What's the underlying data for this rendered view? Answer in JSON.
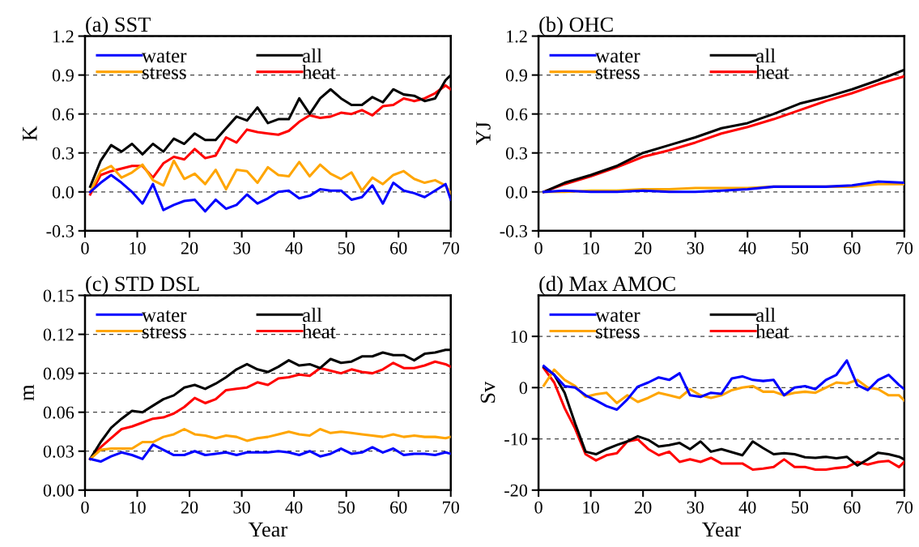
{
  "chart_data": [
    {
      "type": "line",
      "title": "(a) SST",
      "ylabel": "K",
      "xlim": [
        0,
        70
      ],
      "xticks": [
        0,
        10,
        20,
        30,
        40,
        50,
        60,
        70
      ],
      "ylim": [
        -0.3,
        1.2
      ],
      "yticks": [
        {
          "value": -0.3,
          "label": "-0.3"
        },
        {
          "value": 0,
          "label": "0.0"
        },
        {
          "value": 0.3,
          "label": "0.3"
        },
        {
          "value": 0.6,
          "label": "0.6"
        },
        {
          "value": 0.9,
          "label": "0.9"
        },
        {
          "value": 1.2,
          "label": "1.2"
        }
      ],
      "grid": "y",
      "legend": "top left",
      "line_style": "solid",
      "marker": "none",
      "x": [
        1,
        3,
        5,
        7,
        9,
        11,
        13,
        15,
        17,
        19,
        21,
        23,
        25,
        27,
        29,
        31,
        33,
        35,
        37,
        39,
        41,
        43,
        45,
        47,
        49,
        51,
        53,
        55,
        57,
        59,
        61,
        63,
        65,
        67,
        69,
        70
      ],
      "series": [
        {
          "name": "water",
          "color": "#0000ff",
          "values": [
            0.0,
            0.07,
            0.13,
            0.07,
            0.0,
            -0.09,
            0.06,
            -0.14,
            -0.1,
            -0.07,
            -0.06,
            -0.15,
            -0.06,
            -0.13,
            -0.1,
            -0.02,
            -0.09,
            -0.05,
            0.0,
            0.01,
            -0.05,
            -0.03,
            0.02,
            0.01,
            0.01,
            -0.06,
            -0.04,
            0.05,
            -0.09,
            0.07,
            0.01,
            -0.01,
            -0.04,
            0.01,
            0.06,
            -0.06
          ]
        },
        {
          "name": "stress",
          "color": "#ffa500",
          "values": [
            0.0,
            0.16,
            0.2,
            0.11,
            0.15,
            0.21,
            0.09,
            0.05,
            0.24,
            0.1,
            0.14,
            0.06,
            0.17,
            0.02,
            0.17,
            0.16,
            0.07,
            0.19,
            0.13,
            0.12,
            0.23,
            0.12,
            0.21,
            0.14,
            0.1,
            0.15,
            0.01,
            0.11,
            0.06,
            0.13,
            0.16,
            0.1,
            0.07,
            0.09,
            0.05,
            -0.01
          ]
        },
        {
          "name": "all",
          "color": "#000000",
          "values": [
            0.04,
            0.24,
            0.36,
            0.31,
            0.37,
            0.29,
            0.37,
            0.31,
            0.41,
            0.37,
            0.45,
            0.4,
            0.4,
            0.49,
            0.58,
            0.55,
            0.65,
            0.53,
            0.56,
            0.56,
            0.72,
            0.6,
            0.72,
            0.79,
            0.72,
            0.67,
            0.67,
            0.73,
            0.69,
            0.79,
            0.75,
            0.74,
            0.7,
            0.72,
            0.86,
            0.9
          ]
        },
        {
          "name": "heat",
          "color": "#ff0000",
          "values": [
            -0.02,
            0.13,
            0.16,
            0.18,
            0.2,
            0.2,
            0.11,
            0.22,
            0.27,
            0.25,
            0.33,
            0.26,
            0.28,
            0.42,
            0.38,
            0.48,
            0.46,
            0.45,
            0.44,
            0.47,
            0.54,
            0.59,
            0.57,
            0.58,
            0.61,
            0.6,
            0.63,
            0.59,
            0.66,
            0.67,
            0.72,
            0.7,
            0.72,
            0.76,
            0.82,
            0.79
          ]
        }
      ]
    },
    {
      "type": "line",
      "title": "(b) OHC",
      "ylabel": "YJ",
      "xlim": [
        0,
        70
      ],
      "xticks": [
        0,
        10,
        20,
        30,
        40,
        50,
        60,
        70
      ],
      "ylim": [
        -0.3,
        1.2
      ],
      "yticks": [
        {
          "value": -0.3,
          "label": "-0.3"
        },
        {
          "value": 0,
          "label": "0.0"
        },
        {
          "value": 0.3,
          "label": "0.3"
        },
        {
          "value": 0.6,
          "label": "0.6"
        },
        {
          "value": 0.9,
          "label": "0.9"
        },
        {
          "value": 1.2,
          "label": "1.2"
        }
      ],
      "grid": "y",
      "legend": "top left",
      "line_style": "solid",
      "marker": "none",
      "x": [
        1,
        5,
        10,
        15,
        20,
        25,
        30,
        35,
        40,
        45,
        50,
        55,
        60,
        65,
        70
      ],
      "series": [
        {
          "name": "water",
          "color": "#0000ff",
          "values": [
            0.0,
            0.01,
            0.0,
            0.0,
            0.01,
            0.0,
            0.0,
            0.01,
            0.02,
            0.04,
            0.04,
            0.04,
            0.05,
            0.08,
            0.07
          ]
        },
        {
          "name": "stress",
          "color": "#ffa500",
          "values": [
            0.0,
            0.0,
            0.01,
            0.01,
            0.02,
            0.02,
            0.03,
            0.03,
            0.03,
            0.04,
            0.04,
            0.04,
            0.04,
            0.06,
            0.06
          ]
        },
        {
          "name": "all",
          "color": "#000000",
          "values": [
            0.0,
            0.07,
            0.13,
            0.2,
            0.3,
            0.36,
            0.42,
            0.49,
            0.53,
            0.6,
            0.68,
            0.73,
            0.79,
            0.86,
            0.94
          ]
        },
        {
          "name": "heat",
          "color": "#ff0000",
          "values": [
            0.0,
            0.06,
            0.12,
            0.19,
            0.27,
            0.32,
            0.38,
            0.45,
            0.5,
            0.56,
            0.63,
            0.7,
            0.76,
            0.83,
            0.89
          ]
        }
      ]
    },
    {
      "type": "line",
      "title": "(c) STD DSL",
      "xlabel": "Year",
      "ylabel": "m",
      "xlim": [
        0,
        70
      ],
      "xticks": [
        0,
        10,
        20,
        30,
        40,
        50,
        60,
        70
      ],
      "ylim": [
        0,
        0.15
      ],
      "yticks": [
        {
          "value": 0,
          "label": "0.00"
        },
        {
          "value": 0.03,
          "label": "0.03"
        },
        {
          "value": 0.06,
          "label": "0.06"
        },
        {
          "value": 0.09,
          "label": "0.09"
        },
        {
          "value": 0.12,
          "label": "0.12"
        },
        {
          "value": 0.15,
          "label": "0.15"
        }
      ],
      "grid": "y",
      "legend": "top left",
      "line_style": "solid",
      "marker": "none",
      "x": [
        1,
        3,
        5,
        7,
        9,
        11,
        13,
        15,
        17,
        19,
        21,
        23,
        25,
        27,
        29,
        31,
        33,
        35,
        37,
        39,
        41,
        43,
        45,
        47,
        49,
        51,
        53,
        55,
        57,
        59,
        61,
        63,
        65,
        67,
        69,
        70
      ],
      "series": [
        {
          "name": "water",
          "color": "#0000ff",
          "values": [
            0.024,
            0.022,
            0.026,
            0.029,
            0.027,
            0.024,
            0.035,
            0.031,
            0.027,
            0.027,
            0.03,
            0.027,
            0.028,
            0.029,
            0.027,
            0.029,
            0.029,
            0.029,
            0.03,
            0.029,
            0.027,
            0.03,
            0.026,
            0.028,
            0.032,
            0.028,
            0.029,
            0.033,
            0.029,
            0.032,
            0.027,
            0.028,
            0.028,
            0.027,
            0.029,
            0.028
          ]
        },
        {
          "name": "stress",
          "color": "#ffa500",
          "values": [
            0.024,
            0.031,
            0.032,
            0.032,
            0.032,
            0.037,
            0.037,
            0.041,
            0.043,
            0.047,
            0.043,
            0.042,
            0.04,
            0.042,
            0.041,
            0.038,
            0.04,
            0.041,
            0.043,
            0.045,
            0.043,
            0.042,
            0.047,
            0.044,
            0.045,
            0.044,
            0.043,
            0.042,
            0.041,
            0.043,
            0.041,
            0.042,
            0.041,
            0.041,
            0.04,
            0.041
          ]
        },
        {
          "name": "all",
          "color": "#000000",
          "values": [
            0.024,
            0.037,
            0.048,
            0.055,
            0.061,
            0.06,
            0.065,
            0.07,
            0.073,
            0.079,
            0.081,
            0.078,
            0.082,
            0.087,
            0.093,
            0.097,
            0.093,
            0.091,
            0.095,
            0.1,
            0.096,
            0.097,
            0.094,
            0.101,
            0.098,
            0.099,
            0.103,
            0.103,
            0.106,
            0.104,
            0.104,
            0.1,
            0.105,
            0.106,
            0.108,
            0.108
          ]
        },
        {
          "name": "heat",
          "color": "#ff0000",
          "values": [
            0.024,
            0.033,
            0.04,
            0.047,
            0.049,
            0.052,
            0.055,
            0.056,
            0.059,
            0.064,
            0.071,
            0.067,
            0.07,
            0.077,
            0.078,
            0.079,
            0.083,
            0.081,
            0.086,
            0.087,
            0.089,
            0.088,
            0.094,
            0.092,
            0.09,
            0.093,
            0.091,
            0.09,
            0.093,
            0.098,
            0.094,
            0.094,
            0.096,
            0.099,
            0.097,
            0.095
          ]
        }
      ]
    },
    {
      "type": "line",
      "title": "(d) Max AMOC",
      "xlabel": "Year",
      "ylabel": "Sv",
      "xlim": [
        0,
        70
      ],
      "xticks": [
        0,
        10,
        20,
        30,
        40,
        50,
        60,
        70
      ],
      "ylim": [
        -20,
        18
      ],
      "yticks": [
        {
          "value": -20,
          "label": "-20"
        },
        {
          "value": -10,
          "label": "-10"
        },
        0,
        10
      ],
      "grid": "y",
      "legend": "top left",
      "line_style": "solid",
      "marker": "none",
      "x": [
        1,
        3,
        5,
        7,
        9,
        11,
        13,
        15,
        17,
        19,
        21,
        23,
        25,
        27,
        29,
        31,
        33,
        35,
        37,
        39,
        41,
        43,
        45,
        47,
        49,
        51,
        53,
        55,
        57,
        59,
        61,
        63,
        65,
        67,
        69,
        70
      ],
      "series": [
        {
          "name": "water",
          "color": "#0000ff",
          "values": [
            4.2,
            2.5,
            0.3,
            0,
            -1.5,
            -2.5,
            -3.6,
            -4.3,
            -2.3,
            0.2,
            1,
            2,
            1.5,
            2.8,
            -1.5,
            -1.8,
            -1,
            -1.2,
            1.8,
            2.2,
            1.5,
            1.3,
            1.5,
            -1.5,
            0,
            0.3,
            -0.3,
            1.5,
            2.5,
            5.3,
            0.5,
            -0.5,
            1.5,
            2.5,
            0.5,
            -0.3
          ]
        },
        {
          "name": "stress",
          "color": "#ffa500",
          "values": [
            0.4,
            3.5,
            1.5,
            0.3,
            -1.8,
            -1.3,
            -1,
            -3,
            -1.5,
            -2.8,
            -2,
            -1,
            -1.5,
            -2,
            -0.3,
            -1.5,
            -2,
            -1.5,
            -0.5,
            0,
            0.3,
            -0.8,
            -0.8,
            -1.5,
            -1,
            -0.8,
            -1,
            0,
            1,
            0.8,
            1.5,
            0,
            -0.3,
            -1.5,
            -1.5,
            -2.5
          ]
        },
        {
          "name": "all",
          "color": "#000000",
          "values": [
            4,
            2.5,
            -1,
            -7,
            -12.5,
            -13,
            -12,
            -11.2,
            -10.5,
            -9.5,
            -10.2,
            -11.5,
            -11.2,
            -10.8,
            -12,
            -10.5,
            -12.5,
            -12,
            -12.6,
            -13.2,
            -10.5,
            -11.8,
            -13,
            -12.8,
            -13,
            -13.6,
            -13.7,
            -13.5,
            -13.8,
            -13.5,
            -15.2,
            -14,
            -12.7,
            -13,
            -13.5,
            -14
          ]
        },
        {
          "name": "heat",
          "color": "#ff0000",
          "values": [
            3.8,
            1,
            -4,
            -8,
            -13,
            -14.2,
            -13.2,
            -12.8,
            -10.5,
            -10.1,
            -12,
            -13.2,
            -12.5,
            -14.5,
            -14,
            -14.5,
            -13.7,
            -14.8,
            -14.8,
            -14.8,
            -16,
            -15.8,
            -15.5,
            -14,
            -15.5,
            -15.5,
            -16,
            -16,
            -15.7,
            -15.5,
            -14.5,
            -15,
            -14.5,
            -14.3,
            -15.5,
            -14.5
          ]
        }
      ]
    }
  ]
}
